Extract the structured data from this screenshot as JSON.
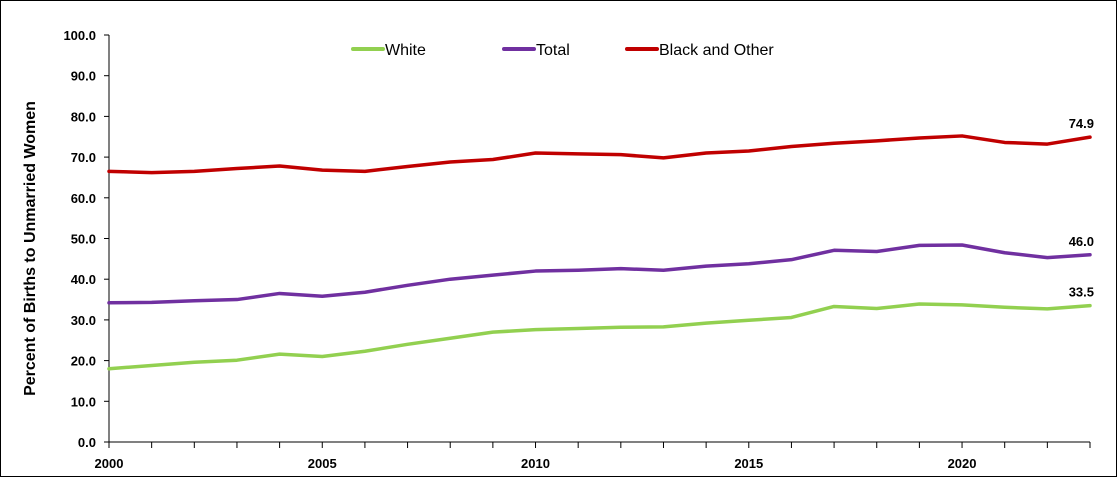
{
  "chart_data": {
    "type": "line",
    "title": "",
    "xlabel": "",
    "ylabel": "Percent of Births to Unmarried Women",
    "x": [
      2000,
      2001,
      2002,
      2003,
      2004,
      2005,
      2006,
      2007,
      2008,
      2009,
      2010,
      2011,
      2012,
      2013,
      2014,
      2015,
      2016,
      2017,
      2018,
      2019,
      2020,
      2021,
      2022,
      2023
    ],
    "xlim": [
      2000,
      2023
    ],
    "x_tick_values": [
      2000,
      2005,
      2010,
      2015,
      2020
    ],
    "x_tick_labels": [
      "2000",
      "2005",
      "2010",
      "2015",
      "2020"
    ],
    "ylim": [
      0,
      100
    ],
    "y_tick_values": [
      0,
      10,
      20,
      30,
      40,
      50,
      60,
      70,
      80,
      90,
      100
    ],
    "y_tick_labels": [
      "0.0",
      "10.0",
      "20.0",
      "30.0",
      "40.0",
      "50.0",
      "60.0",
      "70.0",
      "80.0",
      "90.0",
      "100.0"
    ],
    "grid": false,
    "legend_position": "top",
    "series": [
      {
        "name": "White",
        "color": "#92d050",
        "values": [
          18.0,
          18.8,
          19.6,
          20.1,
          21.6,
          21.0,
          22.3,
          24.0,
          25.5,
          27.0,
          27.6,
          27.9,
          28.2,
          28.3,
          29.2,
          29.9,
          30.6,
          33.3,
          32.8,
          33.9,
          33.7,
          33.1,
          32.7,
          33.5
        ],
        "end_label": "33.5"
      },
      {
        "name": "Total",
        "color": "#7030a0",
        "values": [
          34.2,
          34.3,
          34.7,
          35.0,
          36.5,
          35.8,
          36.8,
          38.5,
          40.0,
          41.0,
          42.0,
          42.2,
          42.6,
          42.2,
          43.2,
          43.8,
          44.8,
          47.1,
          46.8,
          48.3,
          48.4,
          46.5,
          45.3,
          46.0
        ],
        "end_label": "46.0"
      },
      {
        "name": "Black and Other",
        "color": "#c00000",
        "values": [
          66.5,
          66.2,
          66.5,
          67.2,
          67.8,
          66.8,
          66.5,
          67.7,
          68.8,
          69.4,
          71.0,
          70.8,
          70.6,
          69.8,
          71.0,
          71.5,
          72.6,
          73.4,
          74.0,
          74.7,
          75.2,
          73.6,
          73.2,
          74.9
        ],
        "end_label": "74.9"
      }
    ]
  }
}
